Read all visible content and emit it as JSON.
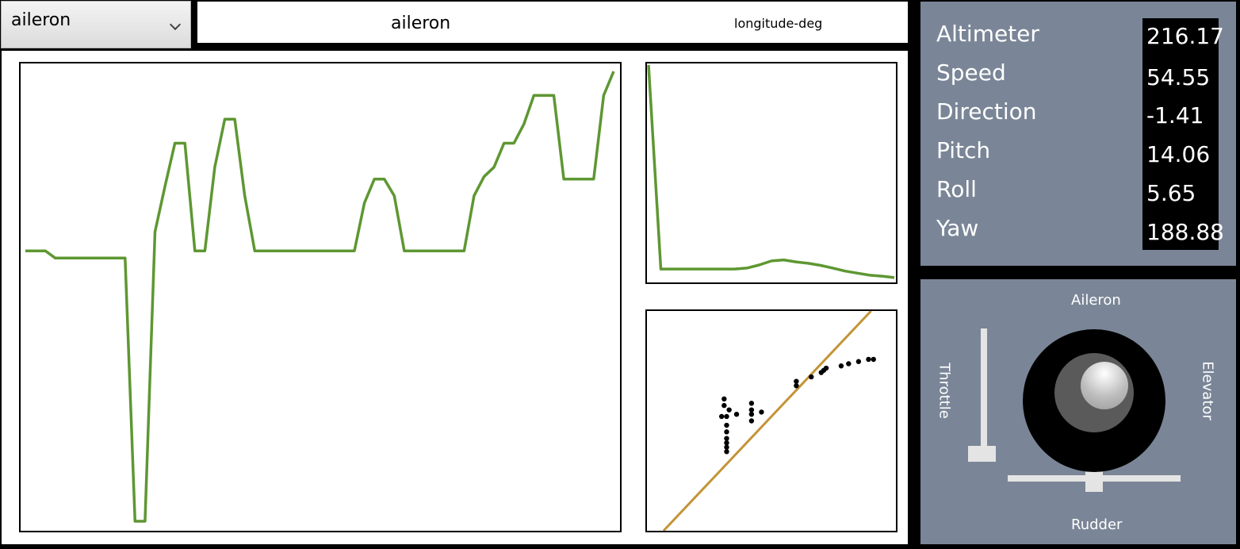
{
  "dropdown": {
    "selected": "aileron"
  },
  "header": {
    "feature": "aileron",
    "correlated": "longitude-deg"
  },
  "telemetry": {
    "items": [
      {
        "label": "Altimeter",
        "value": "216.17"
      },
      {
        "label": "Speed",
        "value": "54.55"
      },
      {
        "label": "Direction",
        "value": "-1.41"
      },
      {
        "label": "Pitch",
        "value": "14.06"
      },
      {
        "label": "Roll",
        "value": "5.65"
      },
      {
        "label": "Yaw",
        "value": "188.88"
      }
    ]
  },
  "joystick": {
    "labels": {
      "aileron": "Aileron",
      "elevator": "Elevator",
      "rudder": "Rudder",
      "throttle": "Throttle"
    },
    "throttle_level": 0.1,
    "rudder_level": 0.5,
    "aileron_level": 0.6,
    "elevator_level": 0.4
  },
  "colors": {
    "series_line": "#5e9732",
    "regression_line": "#c39436",
    "panel_bg": "#7a8697"
  },
  "chart_data": [
    {
      "type": "line",
      "name": "feature-over-time",
      "x": [
        0,
        1,
        2,
        3,
        4,
        5,
        6,
        7,
        8,
        9,
        10,
        11,
        12,
        13,
        14,
        15,
        16,
        17,
        18,
        19,
        20,
        21,
        22,
        23,
        24,
        25,
        26,
        27,
        28,
        29,
        30,
        31,
        32,
        33,
        34,
        35,
        36,
        37,
        38,
        39,
        40,
        41,
        42,
        43,
        44,
        45,
        46,
        47,
        48,
        49,
        50,
        51,
        52,
        53,
        54,
        55,
        56,
        57,
        58,
        59
      ],
      "values": [
        0.25,
        0.25,
        0.25,
        0.22,
        0.22,
        0.22,
        0.22,
        0.22,
        0.22,
        0.22,
        0.22,
        -0.88,
        -0.88,
        0.33,
        0.52,
        0.7,
        0.7,
        0.25,
        0.25,
        0.6,
        0.8,
        0.8,
        0.48,
        0.25,
        0.25,
        0.25,
        0.25,
        0.25,
        0.25,
        0.25,
        0.25,
        0.25,
        0.25,
        0.25,
        0.45,
        0.55,
        0.55,
        0.48,
        0.25,
        0.25,
        0.25,
        0.25,
        0.25,
        0.25,
        0.25,
        0.48,
        0.56,
        0.6,
        0.7,
        0.7,
        0.78,
        0.9,
        0.9,
        0.9,
        0.55,
        0.55,
        0.55,
        0.55,
        0.9,
        1.0
      ],
      "ylim": [
        -0.9,
        1.02
      ],
      "grid": false
    },
    {
      "type": "line",
      "name": "distribution",
      "x": [
        0,
        1,
        2,
        3,
        4,
        5,
        6,
        7,
        8,
        9,
        10,
        11,
        12,
        13,
        14,
        15,
        16,
        17,
        18,
        19,
        20
      ],
      "values": [
        1.0,
        0.0,
        0.0,
        0.0,
        0.0,
        0.0,
        0.0,
        0.0,
        0.005,
        0.02,
        0.04,
        0.045,
        0.035,
        0.028,
        0.018,
        0.005,
        -0.01,
        -0.02,
        -0.03,
        -0.035,
        -0.042
      ],
      "ylim": [
        -0.05,
        1.0
      ],
      "grid": false
    },
    {
      "type": "scatter",
      "name": "correlation",
      "points": [
        [
          0.3,
          0.52
        ],
        [
          0.31,
          0.57
        ],
        [
          0.31,
          0.6
        ],
        [
          0.32,
          0.52
        ],
        [
          0.32,
          0.48
        ],
        [
          0.32,
          0.45
        ],
        [
          0.32,
          0.42
        ],
        [
          0.32,
          0.4
        ],
        [
          0.32,
          0.38
        ],
        [
          0.32,
          0.36
        ],
        [
          0.33,
          0.55
        ],
        [
          0.36,
          0.53
        ],
        [
          0.42,
          0.58
        ],
        [
          0.42,
          0.55
        ],
        [
          0.42,
          0.53
        ],
        [
          0.42,
          0.5
        ],
        [
          0.46,
          0.54
        ],
        [
          0.6,
          0.68
        ],
        [
          0.6,
          0.66
        ],
        [
          0.66,
          0.7
        ],
        [
          0.7,
          0.72
        ],
        [
          0.71,
          0.73
        ],
        [
          0.72,
          0.74
        ],
        [
          0.78,
          0.75
        ],
        [
          0.81,
          0.76
        ],
        [
          0.85,
          0.77
        ],
        [
          0.89,
          0.78
        ],
        [
          0.91,
          0.78
        ]
      ],
      "regression": {
        "slope": 1.2,
        "intercept": -0.08
      },
      "xlim": [
        0,
        1
      ],
      "ylim": [
        0,
        1
      ],
      "grid": false
    }
  ]
}
